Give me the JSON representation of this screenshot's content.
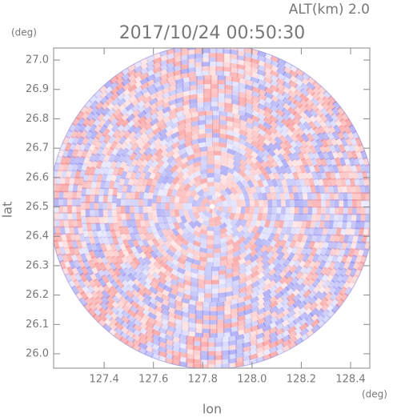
{
  "chart_data": {
    "type": "radar-ppi",
    "title": "2017/10/24 00:50:30",
    "subtitle": "ALT(km)  2.0",
    "x_label": "lon",
    "y_label": "lat",
    "x_unit": "(deg)",
    "y_unit": "(deg)",
    "xlim": [
      127.195,
      128.478
    ],
    "ylim": [
      25.951,
      27.041
    ],
    "xticks": [
      127.4,
      127.6,
      127.8,
      {
        "value": 128.0,
        "label": "128.0"
      },
      128.2,
      128.4
    ],
    "yticks": [
      {
        "value": 26.0,
        "label": "26.0"
      },
      26.1,
      26.2,
      26.3,
      26.4,
      26.5,
      26.6,
      26.7,
      26.8,
      26.9,
      {
        "value": 27.0,
        "label": "27.0"
      }
    ]
  }
}
